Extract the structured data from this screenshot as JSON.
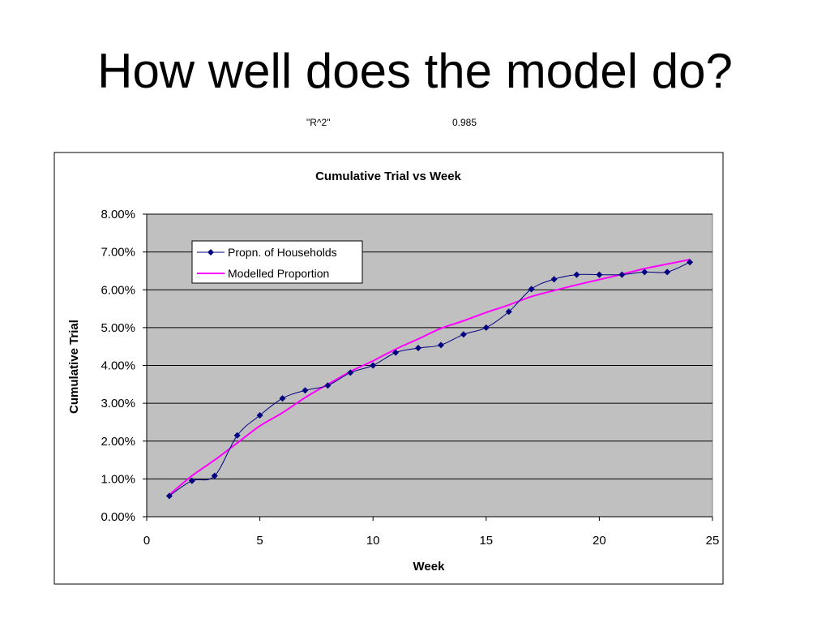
{
  "slide": {
    "title": "How well does the model do?",
    "r2_label": "\"R^2\"",
    "r2_value": "0.985"
  },
  "colors": {
    "plot_background": "#c0c0c0",
    "observed_series": "#000080",
    "model_series": "#ff00ff",
    "gridline": "#000000"
  },
  "chart_data": {
    "type": "line",
    "title": "Cumulative Trial vs Week",
    "xlabel": "Week",
    "ylabel": "Cumulative Trial",
    "xlim": [
      0,
      25
    ],
    "ylim": [
      0,
      0.08
    ],
    "x_ticks": [
      "0",
      "5",
      "10",
      "15",
      "20",
      "25"
    ],
    "y_ticks": [
      "0.00%",
      "1.00%",
      "2.00%",
      "3.00%",
      "4.00%",
      "5.00%",
      "6.00%",
      "7.00%",
      "8.00%"
    ],
    "grid": true,
    "legend_position": "top-left",
    "series": [
      {
        "name": "Propn. of Households",
        "marker": "diamond",
        "smooth": true,
        "x": [
          1,
          2,
          3,
          4,
          5,
          6,
          7,
          8,
          9,
          10,
          11,
          12,
          13,
          14,
          15,
          16,
          17,
          18,
          19,
          20,
          21,
          22,
          23,
          24
        ],
        "y": [
          0.0055,
          0.0095,
          0.0108,
          0.0215,
          0.0268,
          0.0313,
          0.0334,
          0.0347,
          0.0381,
          0.04,
          0.0434,
          0.0446,
          0.0454,
          0.0482,
          0.05,
          0.0542,
          0.0602,
          0.0628,
          0.064,
          0.064,
          0.064,
          0.0647,
          0.0647,
          0.0673
        ]
      },
      {
        "name": "Modelled Proportion",
        "marker": "none",
        "smooth": true,
        "x": [
          1,
          2,
          3,
          4,
          5,
          6,
          7,
          8,
          9,
          10,
          11,
          12,
          13,
          14,
          15,
          16,
          17,
          18,
          19,
          20,
          21,
          22,
          23,
          24
        ],
        "y": [
          0.0058,
          0.0108,
          0.015,
          0.0195,
          0.024,
          0.0275,
          0.0315,
          0.035,
          0.0384,
          0.0412,
          0.0443,
          0.047,
          0.0498,
          0.0518,
          0.054,
          0.056,
          0.0582,
          0.0598,
          0.0613,
          0.0627,
          0.0641,
          0.0656,
          0.0668,
          0.068
        ]
      }
    ]
  }
}
